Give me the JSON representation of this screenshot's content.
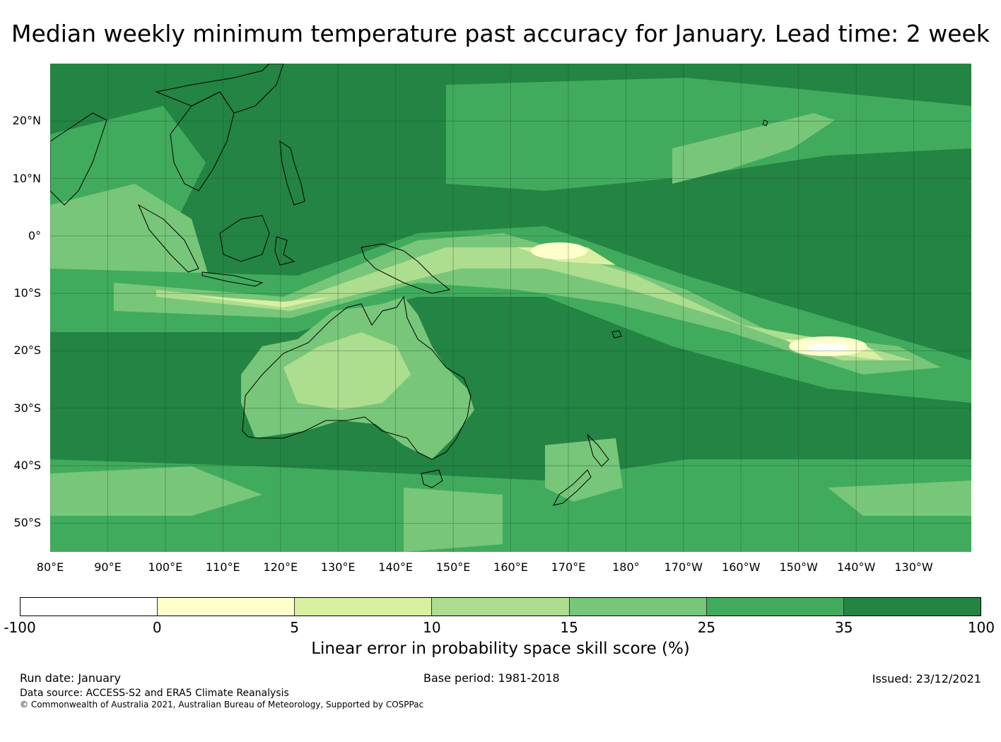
{
  "title": "Median weekly minimum temperature past accuracy for January. Lead time: 2 week",
  "map": {
    "lat_labels": [
      "20°N",
      "10°N",
      "0°",
      "10°S",
      "20°S",
      "30°S",
      "40°S",
      "50°S"
    ],
    "lon_labels": [
      "80°E",
      "90°E",
      "100°E",
      "110°E",
      "120°E",
      "130°E",
      "140°E",
      "150°E",
      "160°E",
      "170°E",
      "180°",
      "170°W",
      "160°W",
      "150°W",
      "140°W",
      "130°W"
    ],
    "lat_range": [
      -55,
      30
    ],
    "lon_range": [
      80,
      240
    ],
    "background_color": "#238443",
    "colors": {
      "deep": "#238443",
      "mid": "#41ab5d",
      "light": "#78c679",
      "pale": "#addd8e",
      "faint": "#d9f0a3",
      "cream": "#ffffcc",
      "white": "#ffffff",
      "coast": "#000000"
    }
  },
  "colorbar": {
    "ticks": [
      "-100",
      "0",
      "5",
      "10",
      "15",
      "25",
      "35",
      "100"
    ],
    "colors": [
      "#ffffff",
      "#ffffcc",
      "#d9f0a3",
      "#addd8e",
      "#78c679",
      "#41ab5d",
      "#238443"
    ],
    "label": "Linear error in probability space skill score (%)"
  },
  "footer": {
    "run_date": "Run date: January",
    "base_period": "Base period: 1981-2018",
    "issued": "Issued: 23/12/2021",
    "data_source": "Data source: ACCESS-S2 and ERA5 Climate Reanalysis",
    "copyright": "© Commonwealth of Australia 2021, Australian Bureau of Meteorology, Supported by COSPPac"
  }
}
